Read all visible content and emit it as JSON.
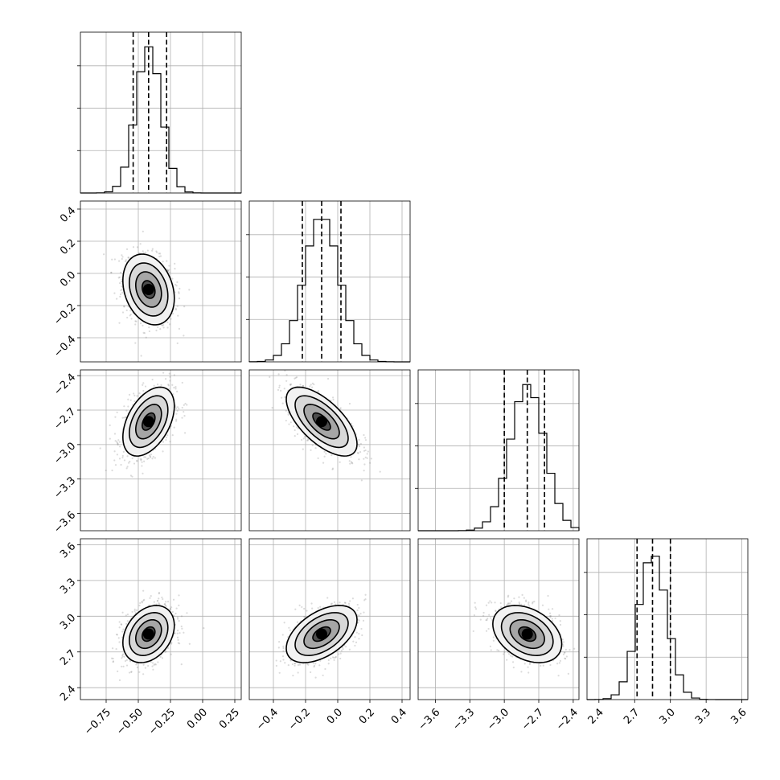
{
  "chart_data": {
    "type": "corner",
    "grid": true,
    "parameters": [
      {
        "label": "",
        "mean": -0.42,
        "sd": 0.1,
        "quantiles": [
          -0.54,
          -0.42,
          -0.28
        ],
        "range": [
          -0.95,
          0.3
        ],
        "ticks": [
          -0.75,
          -0.5,
          -0.25,
          0.0,
          0.25
        ],
        "tick_labels": [
          "−0.75",
          "−0.50",
          "−0.25",
          "0.00",
          "0.25"
        ]
      },
      {
        "label": "",
        "mean": -0.1,
        "sd": 0.11,
        "quantiles": [
          -0.22,
          -0.1,
          0.02
        ],
        "range": [
          -0.55,
          0.45
        ],
        "ticks": [
          -0.4,
          -0.2,
          0.0,
          0.2,
          0.4
        ],
        "tick_labels": [
          "−0.4",
          "−0.2",
          "0.0",
          "0.2",
          "0.4"
        ]
      },
      {
        "label": "",
        "mean": -2.8,
        "sd": 0.15,
        "quantiles": [
          -3.0,
          -2.8,
          -2.65
        ],
        "range": [
          -3.75,
          -2.35
        ],
        "ticks": [
          -3.6,
          -3.3,
          -3.0,
          -2.7,
          -2.4
        ],
        "tick_labels": [
          "−3.6",
          "−3.3",
          "−3.0",
          "−2.7",
          "−2.4"
        ]
      },
      {
        "label": "",
        "mean": 2.85,
        "sd": 0.12,
        "quantiles": [
          2.72,
          2.85,
          3.0
        ],
        "range": [
          2.3,
          3.65
        ],
        "ticks": [
          2.4,
          2.7,
          3.0,
          3.3,
          3.6
        ],
        "tick_labels": [
          "2.4",
          "2.7",
          "3.0",
          "3.3",
          "3.6"
        ]
      }
    ],
    "correlations": [
      {
        "i": 1,
        "j": 0,
        "rho": -0.25
      },
      {
        "i": 2,
        "j": 0,
        "rho": 0.45
      },
      {
        "i": 2,
        "j": 1,
        "rho": -0.65
      },
      {
        "i": 3,
        "j": 0,
        "rho": 0.3
      },
      {
        "i": 3,
        "j": 1,
        "rho": 0.5
      },
      {
        "i": 3,
        "j": 2,
        "rho": -0.35
      }
    ],
    "histogram_bins": 20,
    "contour_levels_sigma": [
      0.5,
      1.0,
      1.5,
      2.0
    ],
    "colors": {
      "line": "#000000",
      "points": "#7f7f7f",
      "grid": "#b0b0b0"
    }
  }
}
